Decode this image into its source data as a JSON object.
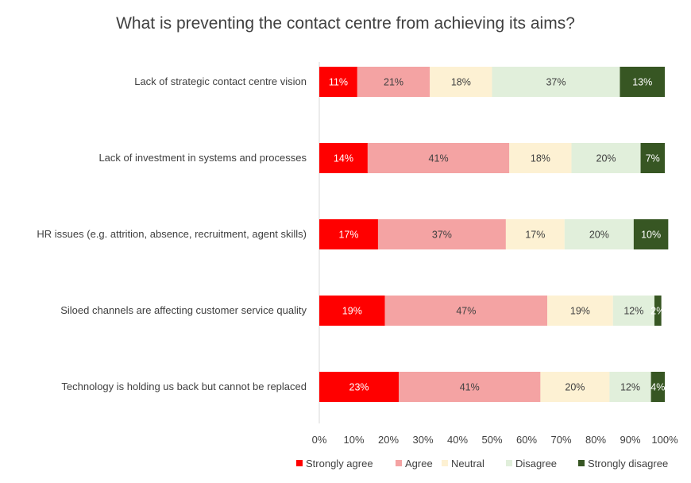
{
  "chart_data": {
    "type": "bar",
    "orientation": "horizontal",
    "stacked": true,
    "title": "What is preventing the contact centre from achieving its aims?",
    "categories": [
      "Lack of strategic contact centre vision",
      "Lack of investment in systems and processes",
      "HR issues (e.g. attrition, absence, recruitment, agent skills)",
      "Siloed channels are affecting customer service quality",
      "Technology is holding us back but cannot be replaced"
    ],
    "series": [
      {
        "name": "Strongly agree",
        "color": "#ff0000",
        "label_color": "#ffffff",
        "values": [
          11,
          14,
          17,
          19,
          23
        ],
        "labels": [
          "11%",
          "14%",
          "17%",
          "19%",
          "23%"
        ]
      },
      {
        "name": "Agree",
        "color": "#f4a3a3",
        "label_color": "#404040",
        "values": [
          21,
          41,
          37,
          47,
          41
        ],
        "labels": [
          "21%",
          "41%",
          "37%",
          "47%",
          "41%"
        ]
      },
      {
        "name": "Neutral",
        "color": "#fdf1d3",
        "label_color": "#404040",
        "values": [
          18,
          18,
          17,
          19,
          20
        ],
        "labels": [
          "18%",
          "18%",
          "17%",
          "19%",
          "20%"
        ]
      },
      {
        "name": "Disagree",
        "color": "#e1efdb",
        "label_color": "#404040",
        "values": [
          37,
          20,
          20,
          12,
          12
        ],
        "labels": [
          "37%",
          "20%",
          "20%",
          "12%",
          "12%"
        ]
      },
      {
        "name": "Strongly disagree",
        "color": "#375623",
        "label_color": "#ffffff",
        "values": [
          13,
          7,
          10,
          2,
          4
        ],
        "labels": [
          "13%",
          "7%",
          "10%",
          "2%",
          "4%"
        ]
      }
    ],
    "xlim": [
      0,
      100
    ],
    "x_ticks": [
      "0%",
      "10%",
      "20%",
      "30%",
      "40%",
      "50%",
      "60%",
      "70%",
      "80%",
      "90%",
      "100%"
    ],
    "xlabel": "",
    "ylabel": "",
    "grid": false,
    "legend_position": "bottom"
  }
}
